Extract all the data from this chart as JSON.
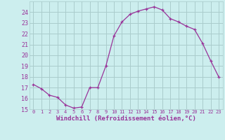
{
  "x": [
    0,
    1,
    2,
    3,
    4,
    5,
    6,
    7,
    8,
    9,
    10,
    11,
    12,
    13,
    14,
    15,
    16,
    17,
    18,
    19,
    20,
    21,
    22,
    23
  ],
  "y": [
    17.3,
    16.9,
    16.3,
    16.1,
    15.4,
    15.1,
    15.2,
    17.0,
    17.0,
    19.0,
    21.8,
    23.1,
    23.8,
    24.1,
    24.3,
    24.5,
    24.2,
    23.4,
    23.1,
    22.7,
    22.4,
    21.1,
    19.5,
    18.0
  ],
  "line_color": "#993399",
  "marker": "+",
  "bg_color": "#cceeee",
  "grid_color": "#aacccc",
  "xlabel": "Windchill (Refroidissement éolien,°C)",
  "xlabel_color": "#993399",
  "tick_color": "#993399",
  "ylim": [
    15,
    25
  ],
  "yticks": [
    15,
    16,
    17,
    18,
    19,
    20,
    21,
    22,
    23,
    24
  ],
  "xlim": [
    -0.5,
    23.5
  ],
  "xticks": [
    0,
    1,
    2,
    3,
    4,
    5,
    6,
    7,
    8,
    9,
    10,
    11,
    12,
    13,
    14,
    15,
    16,
    17,
    18,
    19,
    20,
    21,
    22,
    23
  ],
  "figsize": [
    3.2,
    2.0
  ],
  "dpi": 100
}
